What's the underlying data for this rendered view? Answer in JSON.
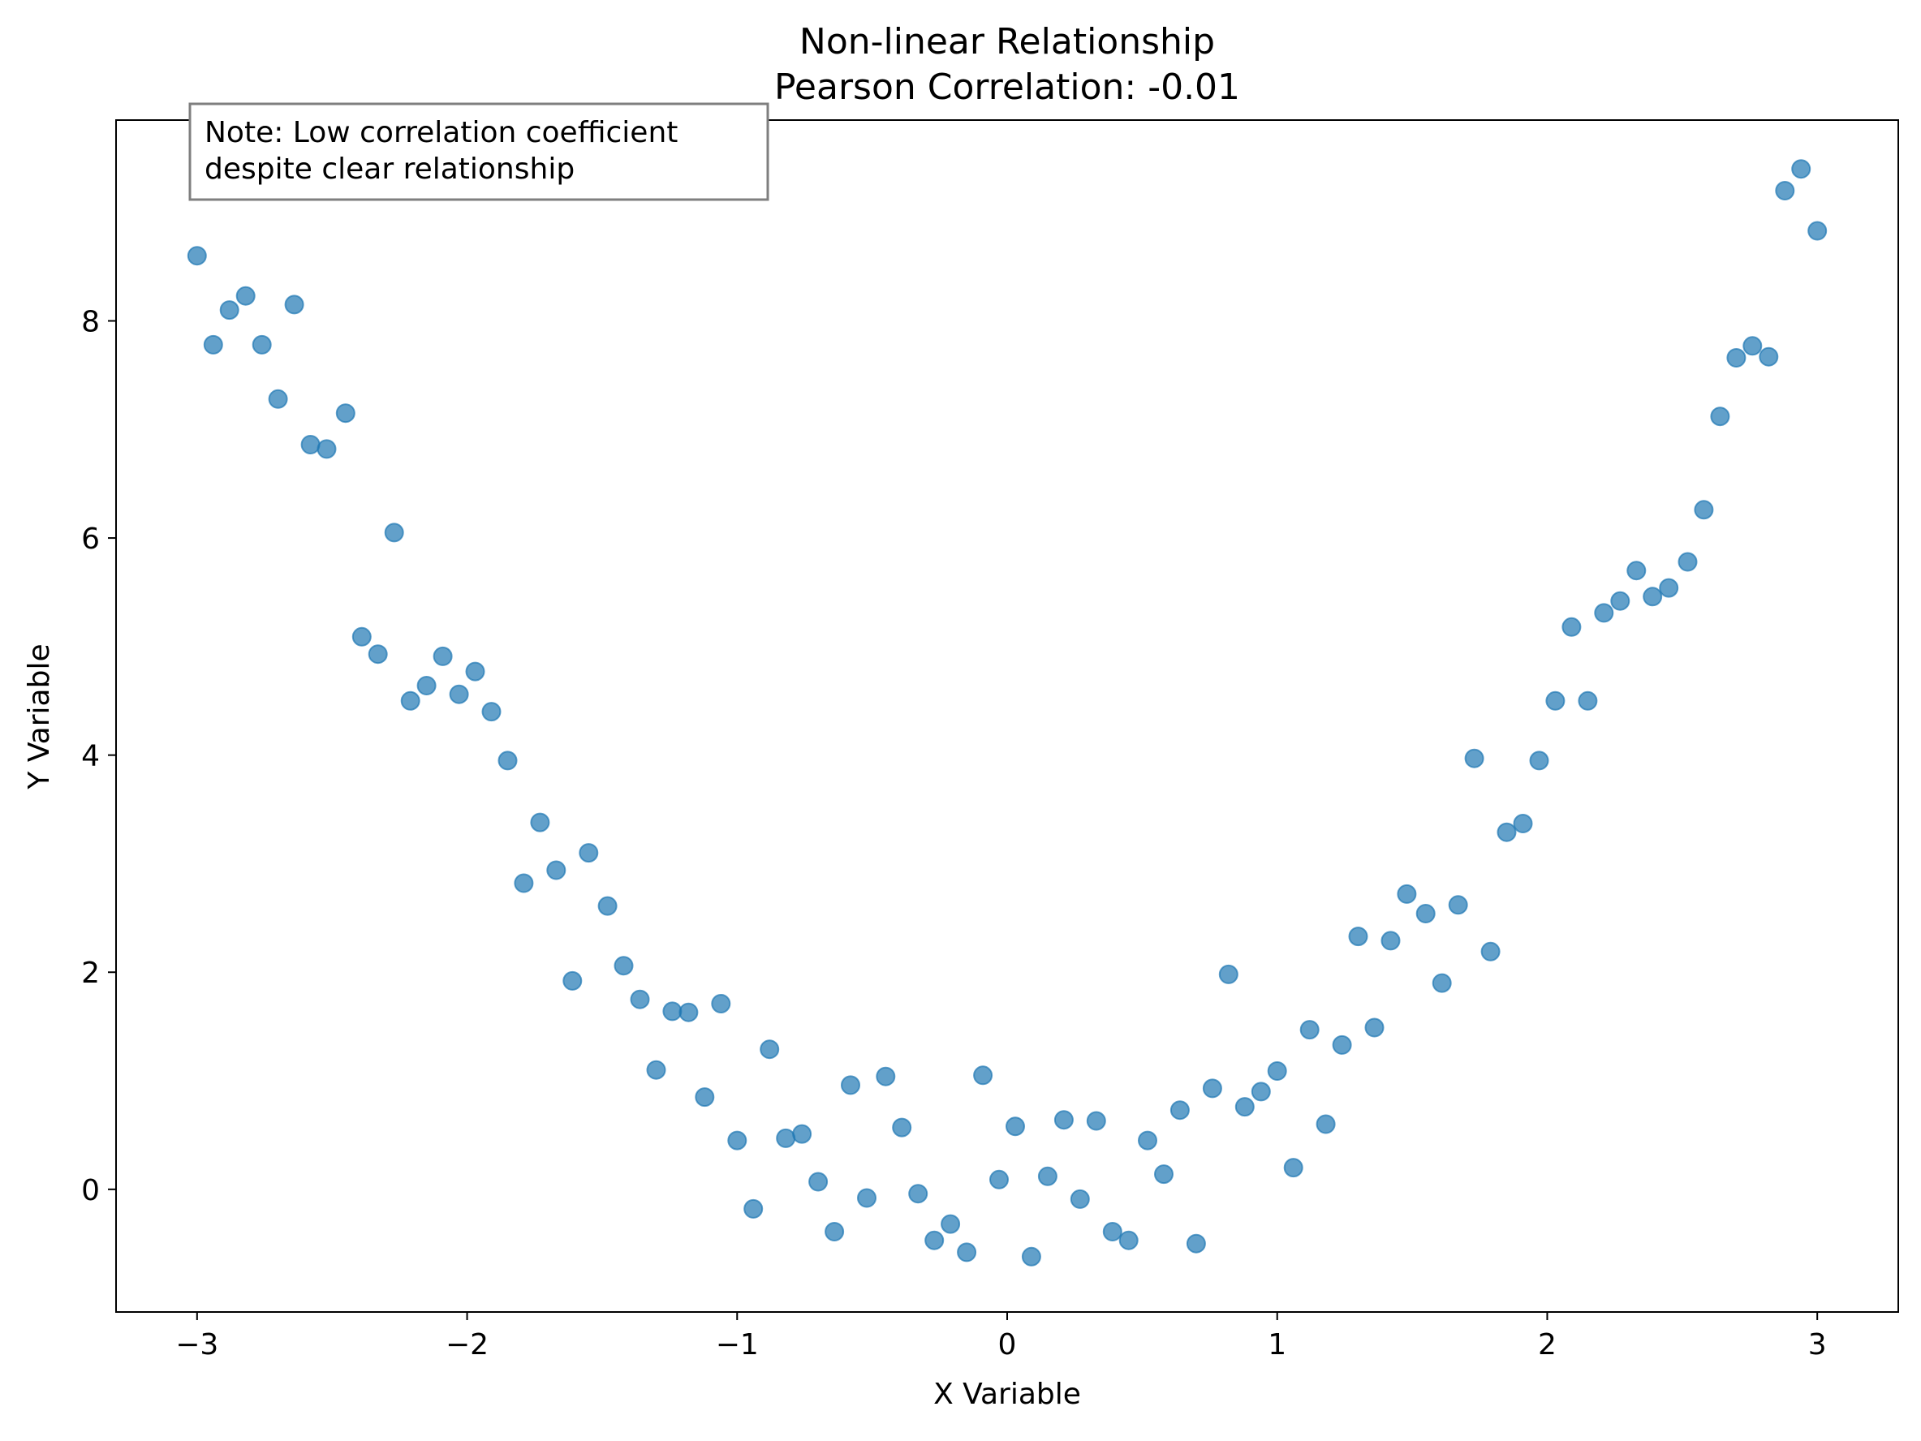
{
  "chart_data": {
    "type": "scatter",
    "title": "Non-linear Relationship",
    "subtitle": "Pearson Correlation: -0.01",
    "xlabel": "X Variable",
    "ylabel": "Y Variable",
    "xlim": [
      -3.3,
      3.3
    ],
    "ylim": [
      -1.13,
      9.85
    ],
    "x_ticks": [
      -3,
      -2,
      -1,
      0,
      1,
      2,
      3
    ],
    "x_tick_labels": [
      "−3",
      "−2",
      "−1",
      "0",
      "1",
      "2",
      "3"
    ],
    "y_ticks": [
      0,
      2,
      4,
      6,
      8
    ],
    "y_tick_labels": [
      "0",
      "2",
      "4",
      "6",
      "8"
    ],
    "grid": false,
    "marker_color": "#1f77b4",
    "marker_opacity": 0.7,
    "annotation": {
      "lines": [
        "Note: Low correlation coefficient",
        "despite clear relationship"
      ],
      "placement": "top-left"
    },
    "series": [
      {
        "x": [
          -3.0,
          -2.94,
          -2.88,
          -2.82,
          -2.76,
          -2.7,
          -2.64,
          -2.58,
          -2.52,
          -2.45,
          -2.39,
          -2.33,
          -2.27,
          -2.21,
          -2.15,
          -2.09,
          -2.03,
          -1.97,
          -1.91,
          -1.85,
          -1.79,
          -1.73,
          -1.67,
          -1.61,
          -1.55,
          -1.48,
          -1.42,
          -1.36,
          -1.3,
          -1.24,
          -1.18,
          -1.12,
          -1.06,
          -1.0,
          -0.94,
          -0.88,
          -0.82,
          -0.76,
          -0.7,
          -0.64,
          -0.58,
          -0.52,
          -0.45,
          -0.39,
          -0.33,
          -0.27,
          -0.21,
          -0.15,
          -0.09,
          -0.03,
          0.03,
          0.09,
          0.15,
          0.21,
          0.27,
          0.33,
          0.39,
          0.45,
          0.52,
          0.58,
          0.64,
          0.7,
          0.76,
          0.82,
          0.88,
          0.94,
          1.0,
          1.06,
          1.12,
          1.18,
          1.24,
          1.3,
          1.36,
          1.42,
          1.48,
          1.55,
          1.61,
          1.67,
          1.73,
          1.79,
          1.85,
          1.91,
          1.97,
          2.03,
          2.09,
          2.15,
          2.21,
          2.27,
          2.33,
          2.39,
          2.45,
          2.52,
          2.58,
          2.64,
          2.7,
          2.76,
          2.82,
          2.88,
          2.94,
          3.0
        ],
        "y": [
          8.6,
          7.78,
          8.1,
          8.23,
          7.78,
          7.28,
          8.15,
          6.86,
          6.82,
          7.15,
          5.09,
          4.93,
          6.05,
          4.5,
          4.64,
          4.91,
          4.56,
          4.77,
          4.4,
          3.95,
          2.82,
          3.38,
          2.94,
          1.92,
          3.1,
          2.61,
          2.06,
          1.75,
          1.1,
          1.64,
          1.63,
          0.85,
          1.71,
          0.45,
          -0.18,
          1.29,
          0.47,
          0.51,
          0.07,
          -0.39,
          0.96,
          -0.08,
          1.04,
          0.57,
          -0.04,
          -0.47,
          -0.32,
          -0.58,
          1.05,
          0.09,
          0.58,
          -0.62,
          0.12,
          0.64,
          -0.09,
          0.63,
          -0.39,
          -0.47,
          0.45,
          0.14,
          0.73,
          -0.5,
          0.93,
          1.98,
          0.76,
          0.9,
          1.09,
          0.2,
          1.47,
          0.6,
          1.33,
          2.33,
          1.49,
          2.29,
          2.72,
          2.54,
          1.9,
          2.62,
          3.97,
          2.19,
          3.29,
          3.37,
          3.95,
          4.5,
          5.18,
          4.5,
          5.31,
          5.42,
          5.7,
          5.46,
          5.54,
          5.78,
          6.26,
          7.12,
          7.66,
          7.77,
          7.67,
          9.2,
          9.4,
          8.83
        ]
      }
    ]
  }
}
